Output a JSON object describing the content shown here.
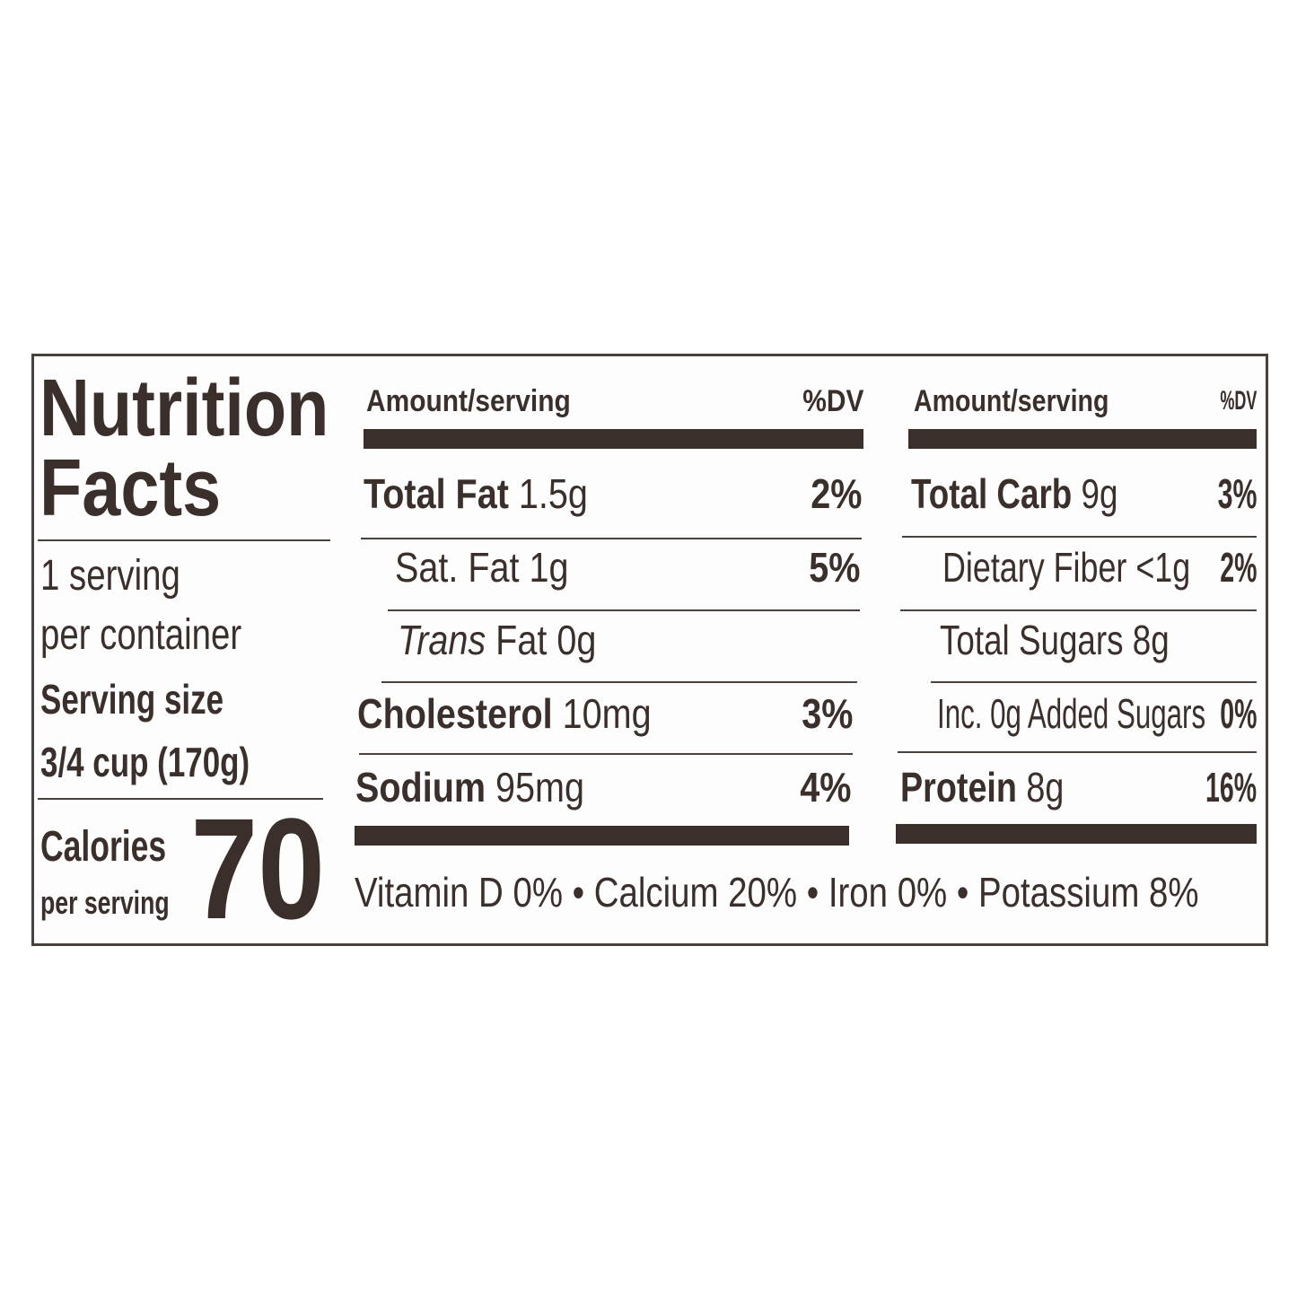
{
  "title": {
    "line1": "Nutrition",
    "line2": "Facts"
  },
  "servings": {
    "line1": "1 serving",
    "line2": "per container",
    "size_label": "Serving size",
    "size_value": "3/4 cup (170g)"
  },
  "calories": {
    "label": "Calories",
    "sublabel": "per serving",
    "value": "70"
  },
  "left_table": {
    "header_amount": "Amount/serving",
    "header_dv": "%DV",
    "rows": [
      {
        "name": "Total Fat",
        "amount": "1.5g",
        "dv": "2%"
      },
      {
        "name": "Sat. Fat",
        "amount": "1g",
        "dv": "5%"
      },
      {
        "name_italic": "Trans",
        "name": "Fat",
        "amount": "0g",
        "dv": ""
      },
      {
        "name": "Cholesterol",
        "amount": "10mg",
        "dv": "3%"
      },
      {
        "name": "Sodium",
        "amount": "95mg",
        "dv": "4%"
      }
    ]
  },
  "right_table": {
    "header_amount": "Amount/serving",
    "header_dv": "%DV",
    "rows": [
      {
        "name": "Total Carb",
        "amount": "9g",
        "dv": "3%"
      },
      {
        "name": "Dietary Fiber",
        "amount": "<1g",
        "dv": "2%"
      },
      {
        "name": "Total Sugars",
        "amount": "8g",
        "dv": ""
      },
      {
        "name": "Inc. 0g Added Sugars",
        "amount": "",
        "dv": "0%"
      },
      {
        "name": "Protein",
        "amount": "8g",
        "dv": "16%"
      }
    ]
  },
  "vitamins": "Vitamin D 0% • Calcium 20% • Iron 0% • Potassium 8%",
  "colors": {
    "ink": "#3a2f2b",
    "border": "#4a403c",
    "background": "#ffffff"
  }
}
